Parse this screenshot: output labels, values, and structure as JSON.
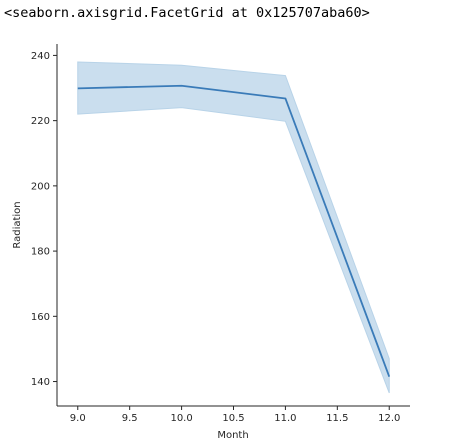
{
  "output_text": "<seaborn.axisgrid.FacetGrid at 0x125707aba60>",
  "chart_data": {
    "type": "line",
    "xlabel": "Month",
    "ylabel": "Radiation",
    "xlim": [
      8.8,
      12.2
    ],
    "ylim": [
      132.5,
      243.5
    ],
    "x_ticks": [
      9.0,
      9.5,
      10.0,
      10.5,
      11.0,
      11.5,
      12.0
    ],
    "x_tick_labels": [
      "9.0",
      "9.5",
      "10.0",
      "10.5",
      "11.0",
      "11.5",
      "12.0"
    ],
    "y_ticks": [
      140,
      160,
      180,
      200,
      220,
      240
    ],
    "y_tick_labels": [
      "140",
      "160",
      "180",
      "200",
      "220",
      "240"
    ],
    "series": [
      {
        "x": [
          9.0,
          10.0,
          11.0,
          12.0
        ],
        "y": [
          229.9,
          230.7,
          226.8,
          141.5
        ],
        "ci_lower": [
          222.0,
          224.0,
          219.8,
          136.5
        ],
        "ci_upper": [
          238.0,
          237.0,
          233.8,
          147.0
        ]
      }
    ],
    "colors": {
      "line": "#3a7bb8",
      "band": "#b8d3e8",
      "axis": "#262626"
    },
    "grid": false,
    "legend": "none"
  }
}
